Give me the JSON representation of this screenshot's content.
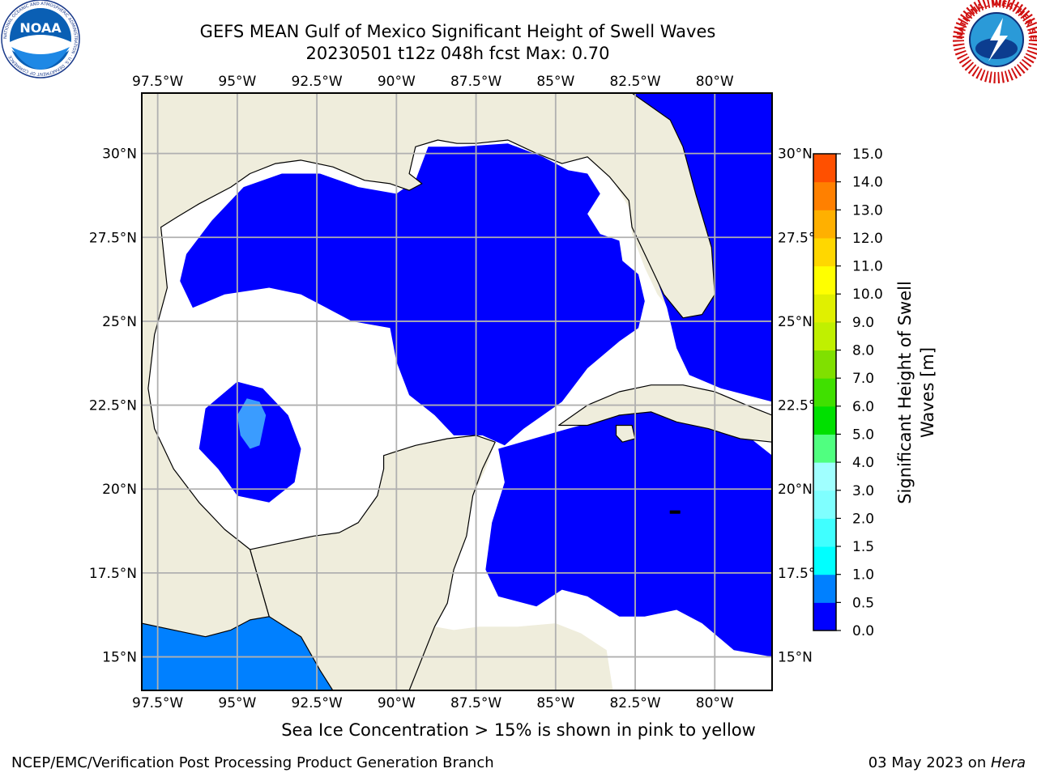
{
  "header": {
    "title_line1": "GEFS MEAN Gulf of Mexico Significant Height of Swell Waves",
    "title_line2": "20230501 t12z 048h fcst   Max: 0.70"
  },
  "logos": {
    "left": {
      "name": "noaa-logo",
      "text": "NOAA",
      "ring_text": "NATIONAL OCEANIC AND ATMOSPHERIC ADMINISTRATION · U.S. DEPARTMENT OF COMMERCE"
    },
    "right": {
      "name": "nws-logo",
      "ring_text": "NATIONAL WEATHER SERVICE"
    }
  },
  "map": {
    "lon_labels": [
      "97.5°W",
      "95°W",
      "92.5°W",
      "90°W",
      "87.5°W",
      "85°W",
      "82.5°W",
      "80°W"
    ],
    "lat_labels_left": [
      "30°N",
      "27.5°N",
      "25°N",
      "22.5°N",
      "20°N",
      "17.5°N",
      "15°N"
    ],
    "lat_labels_right": [
      "30°N",
      "27.5°N",
      "25°N",
      "22.5°N",
      "20°N",
      "17.5°N",
      "15°N"
    ],
    "lon_range": [
      -98,
      -78.2
    ],
    "lat_range": [
      14,
      31.8
    ],
    "colors": {
      "land": "#efeddc",
      "water_low": "#0000ff",
      "water_mid": "#0080ff",
      "water_light": "#3a9cff",
      "no_data": "#ffffff",
      "grid": "#b0b0b0"
    }
  },
  "colorbar": {
    "label": "Significant Height of Swell Waves [m]",
    "tick_labels": [
      "0.0",
      "0.5",
      "1.0",
      "1.5",
      "2.0",
      "3.0",
      "4.0",
      "5.0",
      "6.0",
      "7.0",
      "8.0",
      "9.0",
      "10.0",
      "11.0",
      "12.0",
      "13.0",
      "14.0",
      "15.0"
    ],
    "colors": [
      "#0000ff",
      "#0080ff",
      "#00ffff",
      "#40ffff",
      "#7fffff",
      "#a0ffff",
      "#50ff80",
      "#00e000",
      "#40e000",
      "#80e000",
      "#c0f000",
      "#e0f000",
      "#ffff00",
      "#ffd700",
      "#ffb000",
      "#ff8000",
      "#ff5000",
      "#ff2000",
      "#ff0000"
    ]
  },
  "footer": {
    "note": "Sea Ice Concentration > 15% is shown in pink to yellow",
    "credit": "NCEP/EMC/Verification Post Processing Product Generation Branch",
    "date": "03 May 2023 on ",
    "machine": "Hera"
  }
}
